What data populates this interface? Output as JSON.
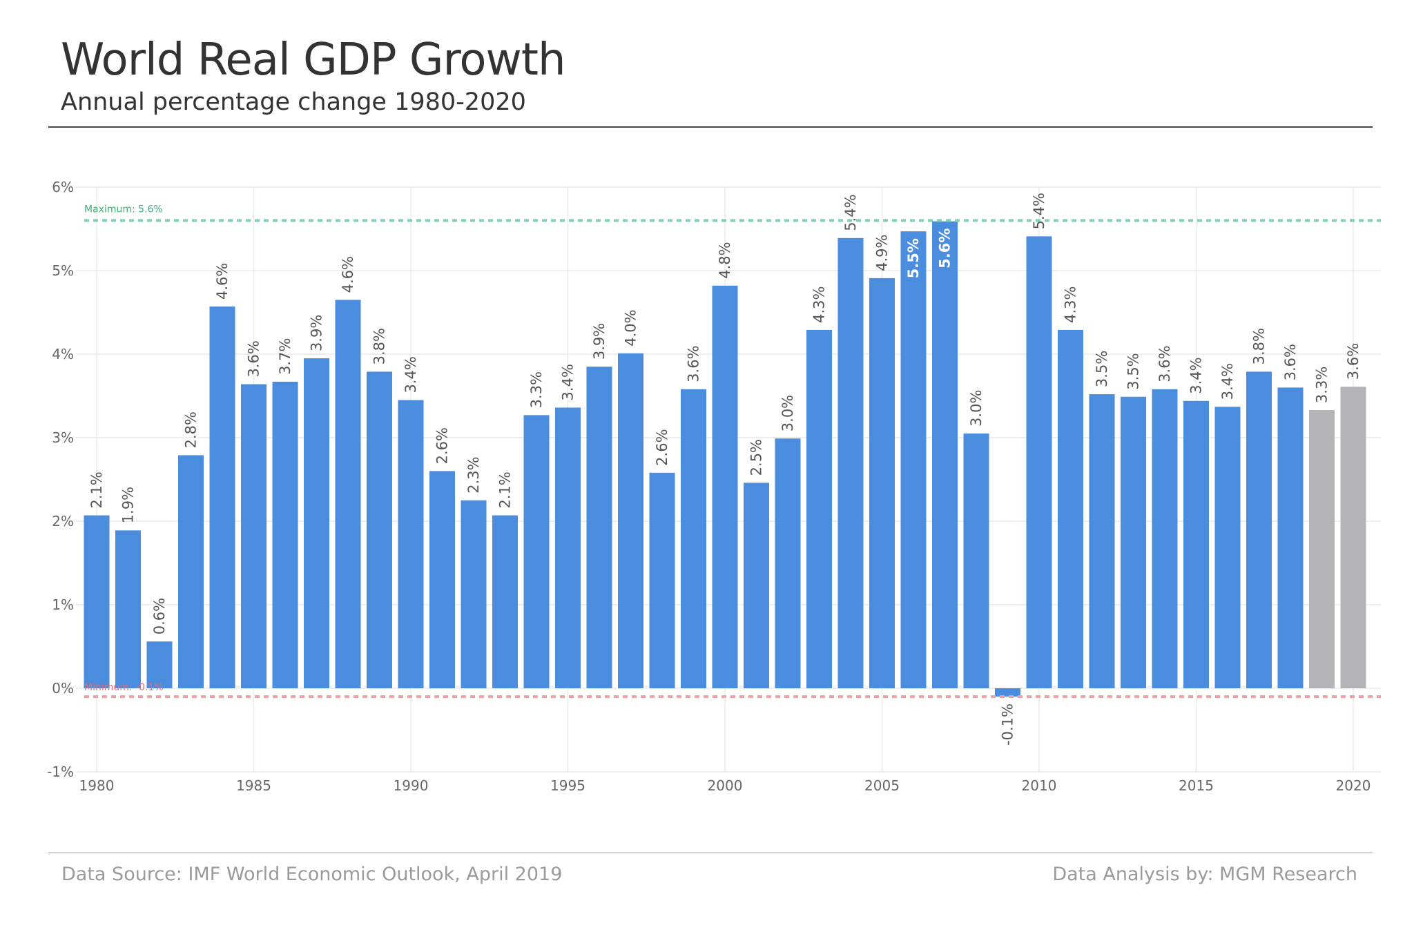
{
  "header": {
    "title": "World Real GDP Growth",
    "subtitle": "Annual percentage change 1980-2020"
  },
  "footer": {
    "source": "Data Source: IMF World Economic Outlook, April 2019",
    "credit": "Data Analysis by: MGM Research"
  },
  "chart_data": {
    "type": "bar",
    "title": "World Real GDP Growth",
    "subtitle": "Annual percentage change 1980-2020",
    "xlabel": "",
    "ylabel": "",
    "ylim": [
      -1,
      6
    ],
    "yticks": [
      -1,
      0,
      1,
      2,
      3,
      4,
      5,
      6
    ],
    "ytick_labels": [
      "-1%",
      "0%",
      "1%",
      "2%",
      "3%",
      "4%",
      "5%",
      "6%"
    ],
    "xticks": [
      1980,
      1985,
      1990,
      1995,
      2000,
      2005,
      2010,
      2015,
      2020
    ],
    "xtick_labels": [
      "1980",
      "1985",
      "1990",
      "1995",
      "2000",
      "2005",
      "2010",
      "2015",
      "2020"
    ],
    "grid": true,
    "categories": [
      1980,
      1981,
      1982,
      1983,
      1984,
      1985,
      1986,
      1987,
      1988,
      1989,
      1990,
      1991,
      1992,
      1993,
      1994,
      1995,
      1996,
      1997,
      1998,
      1999,
      2000,
      2001,
      2002,
      2003,
      2004,
      2005,
      2006,
      2007,
      2008,
      2009,
      2010,
      2011,
      2012,
      2013,
      2014,
      2015,
      2016,
      2017,
      2018,
      2019,
      2020
    ],
    "values": [
      2.07,
      1.89,
      0.56,
      2.79,
      4.57,
      3.64,
      3.67,
      3.95,
      4.65,
      3.79,
      3.45,
      2.6,
      2.25,
      2.07,
      3.27,
      3.36,
      3.85,
      4.01,
      2.58,
      3.58,
      4.82,
      2.46,
      2.99,
      4.29,
      5.39,
      4.91,
      5.47,
      5.59,
      3.05,
      -0.1,
      5.41,
      4.29,
      3.52,
      3.49,
      3.58,
      3.44,
      3.37,
      3.79,
      3.6,
      3.33,
      3.61
    ],
    "labels": [
      "2.1%",
      "1.9%",
      "0.6%",
      "2.8%",
      "4.6%",
      "3.6%",
      "3.7%",
      "3.9%",
      "4.6%",
      "3.8%",
      "3.4%",
      "2.6%",
      "2.3%",
      "2.1%",
      "3.3%",
      "3.4%",
      "3.9%",
      "4.0%",
      "2.6%",
      "3.6%",
      "4.8%",
      "2.5%",
      "3.0%",
      "4.3%",
      "5.4%",
      "4.9%",
      "5.5%",
      "5.6%",
      "3.0%",
      "-0.1%",
      "5.4%",
      "4.3%",
      "3.5%",
      "3.5%",
      "3.6%",
      "3.4%",
      "3.4%",
      "3.8%",
      "3.6%",
      "3.3%",
      "3.6%"
    ],
    "projected_years": [
      2019,
      2020
    ],
    "colors": {
      "actual": "#4a8cdd",
      "projected": "#b4b3b8",
      "max_line": "#7fd1b0",
      "max_text": "#3fae78",
      "min_line": "#eaa2aa",
      "min_text": "#e06d78"
    },
    "reference_lines": [
      {
        "name": "maximum",
        "value": 5.6,
        "label": "Maximum: 5.6%"
      },
      {
        "name": "minimum",
        "value": -0.1,
        "label": "Minimum: -0.1%"
      }
    ]
  }
}
